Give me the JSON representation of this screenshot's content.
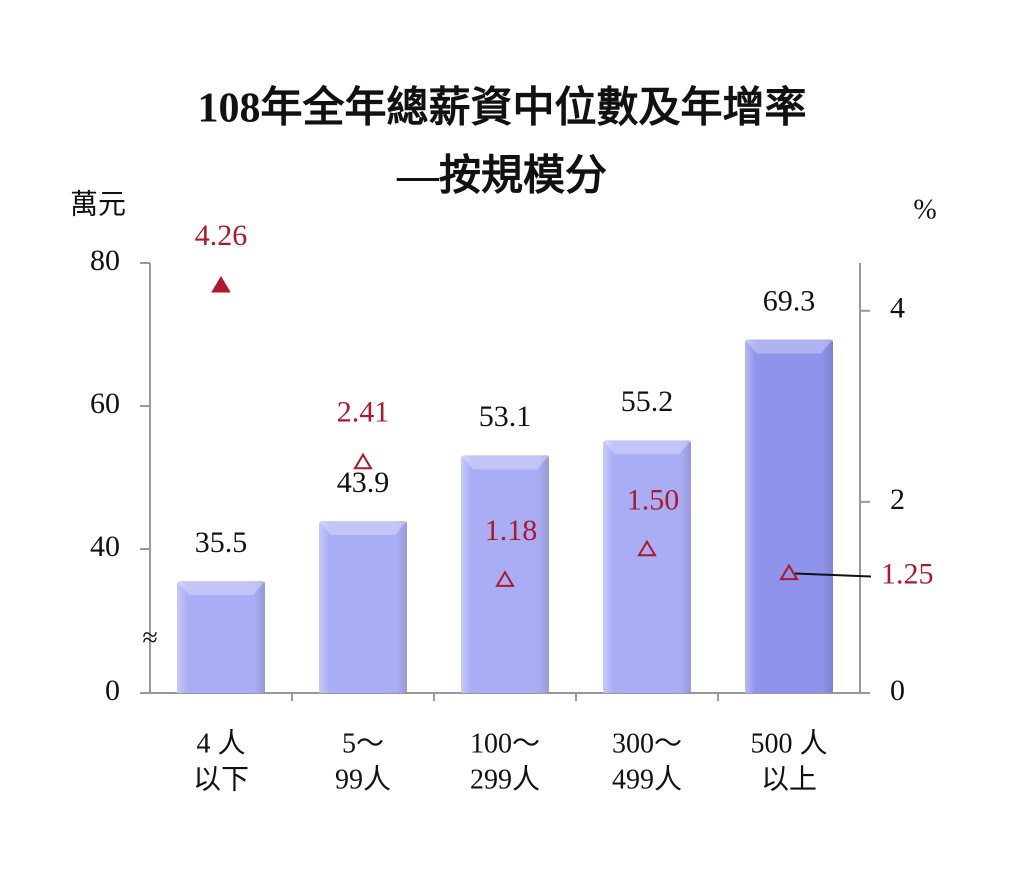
{
  "chart_data": {
    "type": "bar_triangle",
    "title": "108年全年總薪資中位數及年增率",
    "subtitle": "—按規模分",
    "y_label": "萬元",
    "y2_label": "%",
    "categories": [
      [
        "4 人",
        "以下"
      ],
      [
        "5～",
        "99人"
      ],
      [
        "100～",
        "299人"
      ],
      [
        "300～",
        "499人"
      ],
      [
        "500 人",
        "以上"
      ]
    ],
    "series": [
      {
        "type": "bar",
        "values": [
          35.5,
          43.9,
          53.1,
          55.2,
          69.3
        ],
        "colors": [
          "#a9adf4",
          "#a9adf4",
          "#a9adf4",
          "#a9adf4",
          "#8e93ec"
        ]
      },
      {
        "type": "triangle",
        "axis": "y2",
        "color": "#b0172a",
        "values": [
          4.26,
          2.41,
          1.18,
          1.5,
          1.25
        ],
        "value_labels": [
          "4.26",
          "2.41",
          "1.18",
          "1.50",
          "1.25"
        ],
        "filled": [
          true,
          false,
          false,
          false,
          false
        ]
      }
    ],
    "ylim": [
      0,
      80
    ],
    "yticks": [
      0,
      40,
      60,
      80
    ],
    "axis_break": "≈",
    "y2lim": [
      0,
      4.5
    ],
    "y2ticks": [
      0,
      2,
      4
    ]
  }
}
